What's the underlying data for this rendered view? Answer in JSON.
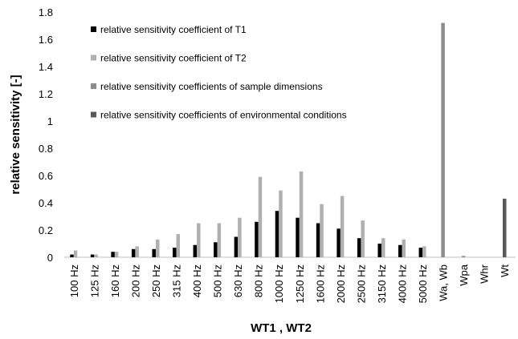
{
  "chart_data": {
    "type": "bar",
    "x_label": "WT1 , WT2",
    "y_label": "relative sensitivity [-]",
    "categories": [
      "100 Hz",
      "125 Hz",
      "160 Hz",
      "200 Hz",
      "250 Hz",
      "315 Hz",
      "400 Hz",
      "500 Hz",
      "630 Hz",
      "800 Hz",
      "1000 Hz",
      "1250 Hz",
      "1600 Hz",
      "2000 Hz",
      "2500 Hz",
      "3150 Hz",
      "4000 Hz",
      "5000 Hz",
      "Wa, Wb",
      "Wpa",
      "Whr",
      "Wt"
    ],
    "series": [
      {
        "name": "relative sensitivity coefficient of T1",
        "color": "#000000",
        "values": [
          0.02,
          0.02,
          0.04,
          0.06,
          0.06,
          0.07,
          0.09,
          0.11,
          0.15,
          0.26,
          0.34,
          0.29,
          0.25,
          0.21,
          0.14,
          0.1,
          0.09,
          0.07,
          null,
          null,
          null,
          null
        ]
      },
      {
        "name": "relative sensitivity coefficient of T2",
        "color": "#b0b0b0",
        "values": [
          0.05,
          0.02,
          0.04,
          0.08,
          0.13,
          0.17,
          0.25,
          0.25,
          0.29,
          0.59,
          0.49,
          0.63,
          0.39,
          0.45,
          0.27,
          0.14,
          0.13,
          0.08,
          null,
          null,
          null,
          null
        ]
      },
      {
        "name": "relative sensitivity coefficients of sample dimensions",
        "color": "#8c8c8c",
        "values": [
          null,
          null,
          null,
          null,
          null,
          null,
          null,
          null,
          null,
          null,
          null,
          null,
          null,
          null,
          null,
          null,
          null,
          null,
          1.72,
          0.01,
          null,
          null
        ]
      },
      {
        "name": "relative sensitivity coefficients of environmental conditions",
        "color": "#595959",
        "values": [
          null,
          null,
          null,
          null,
          null,
          null,
          null,
          null,
          null,
          null,
          null,
          null,
          null,
          null,
          null,
          null,
          null,
          null,
          null,
          null,
          null,
          0.43
        ]
      }
    ],
    "ylim": [
      0,
      1.8
    ],
    "yticks": [
      0,
      0.2,
      0.4,
      0.6,
      0.8,
      1,
      1.2,
      1.4,
      1.6,
      1.8
    ],
    "grid": false,
    "legend": "top-left"
  }
}
